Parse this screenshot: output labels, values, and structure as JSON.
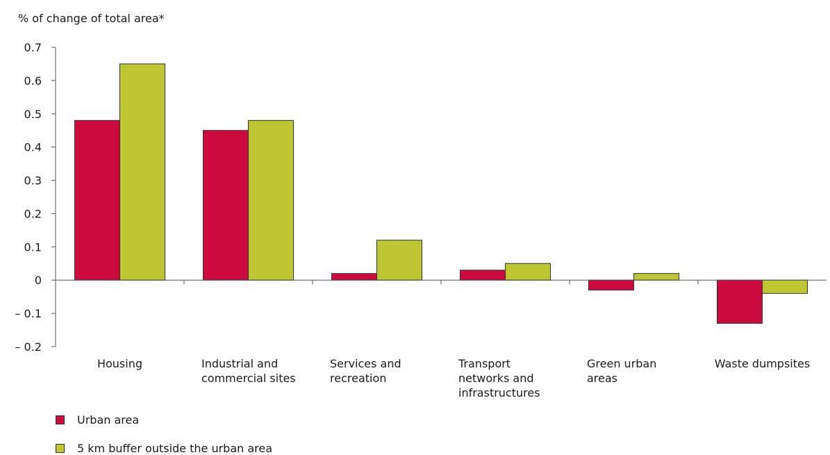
{
  "chart_data": {
    "type": "bar",
    "ylabel": "% of change of total area*",
    "categories": [
      [
        "Housing"
      ],
      [
        "Industrial and",
        "commercial sites"
      ],
      [
        "Services and",
        "recreation"
      ],
      [
        "Transport",
        "networks and",
        "infrastructures"
      ],
      [
        "Green urban",
        "areas"
      ],
      [
        "Waste dumpsites"
      ]
    ],
    "series": [
      {
        "name": "Urban area",
        "color": "#cc0a3e",
        "values": [
          0.48,
          0.45,
          0.02,
          0.03,
          -0.03,
          -0.13
        ]
      },
      {
        "name": "5 km buffer outside the urban area",
        "color": "#bfc634",
        "values": [
          0.65,
          0.48,
          0.12,
          0.05,
          0.02,
          -0.04
        ]
      }
    ],
    "ylim": [
      -0.2,
      0.7
    ],
    "yticks": [
      0.7,
      0.6,
      0.5,
      0.4,
      0.3,
      0.2,
      0.1,
      0,
      -0.1,
      -0.2
    ],
    "ytick_labels": [
      "0.7",
      "0.6",
      "0.5",
      "0.4",
      "0.3",
      "0.2",
      "0.1",
      "0",
      "– 0.1",
      "– 0.2"
    ],
    "grid": false,
    "legend_position": "bottom-left"
  }
}
